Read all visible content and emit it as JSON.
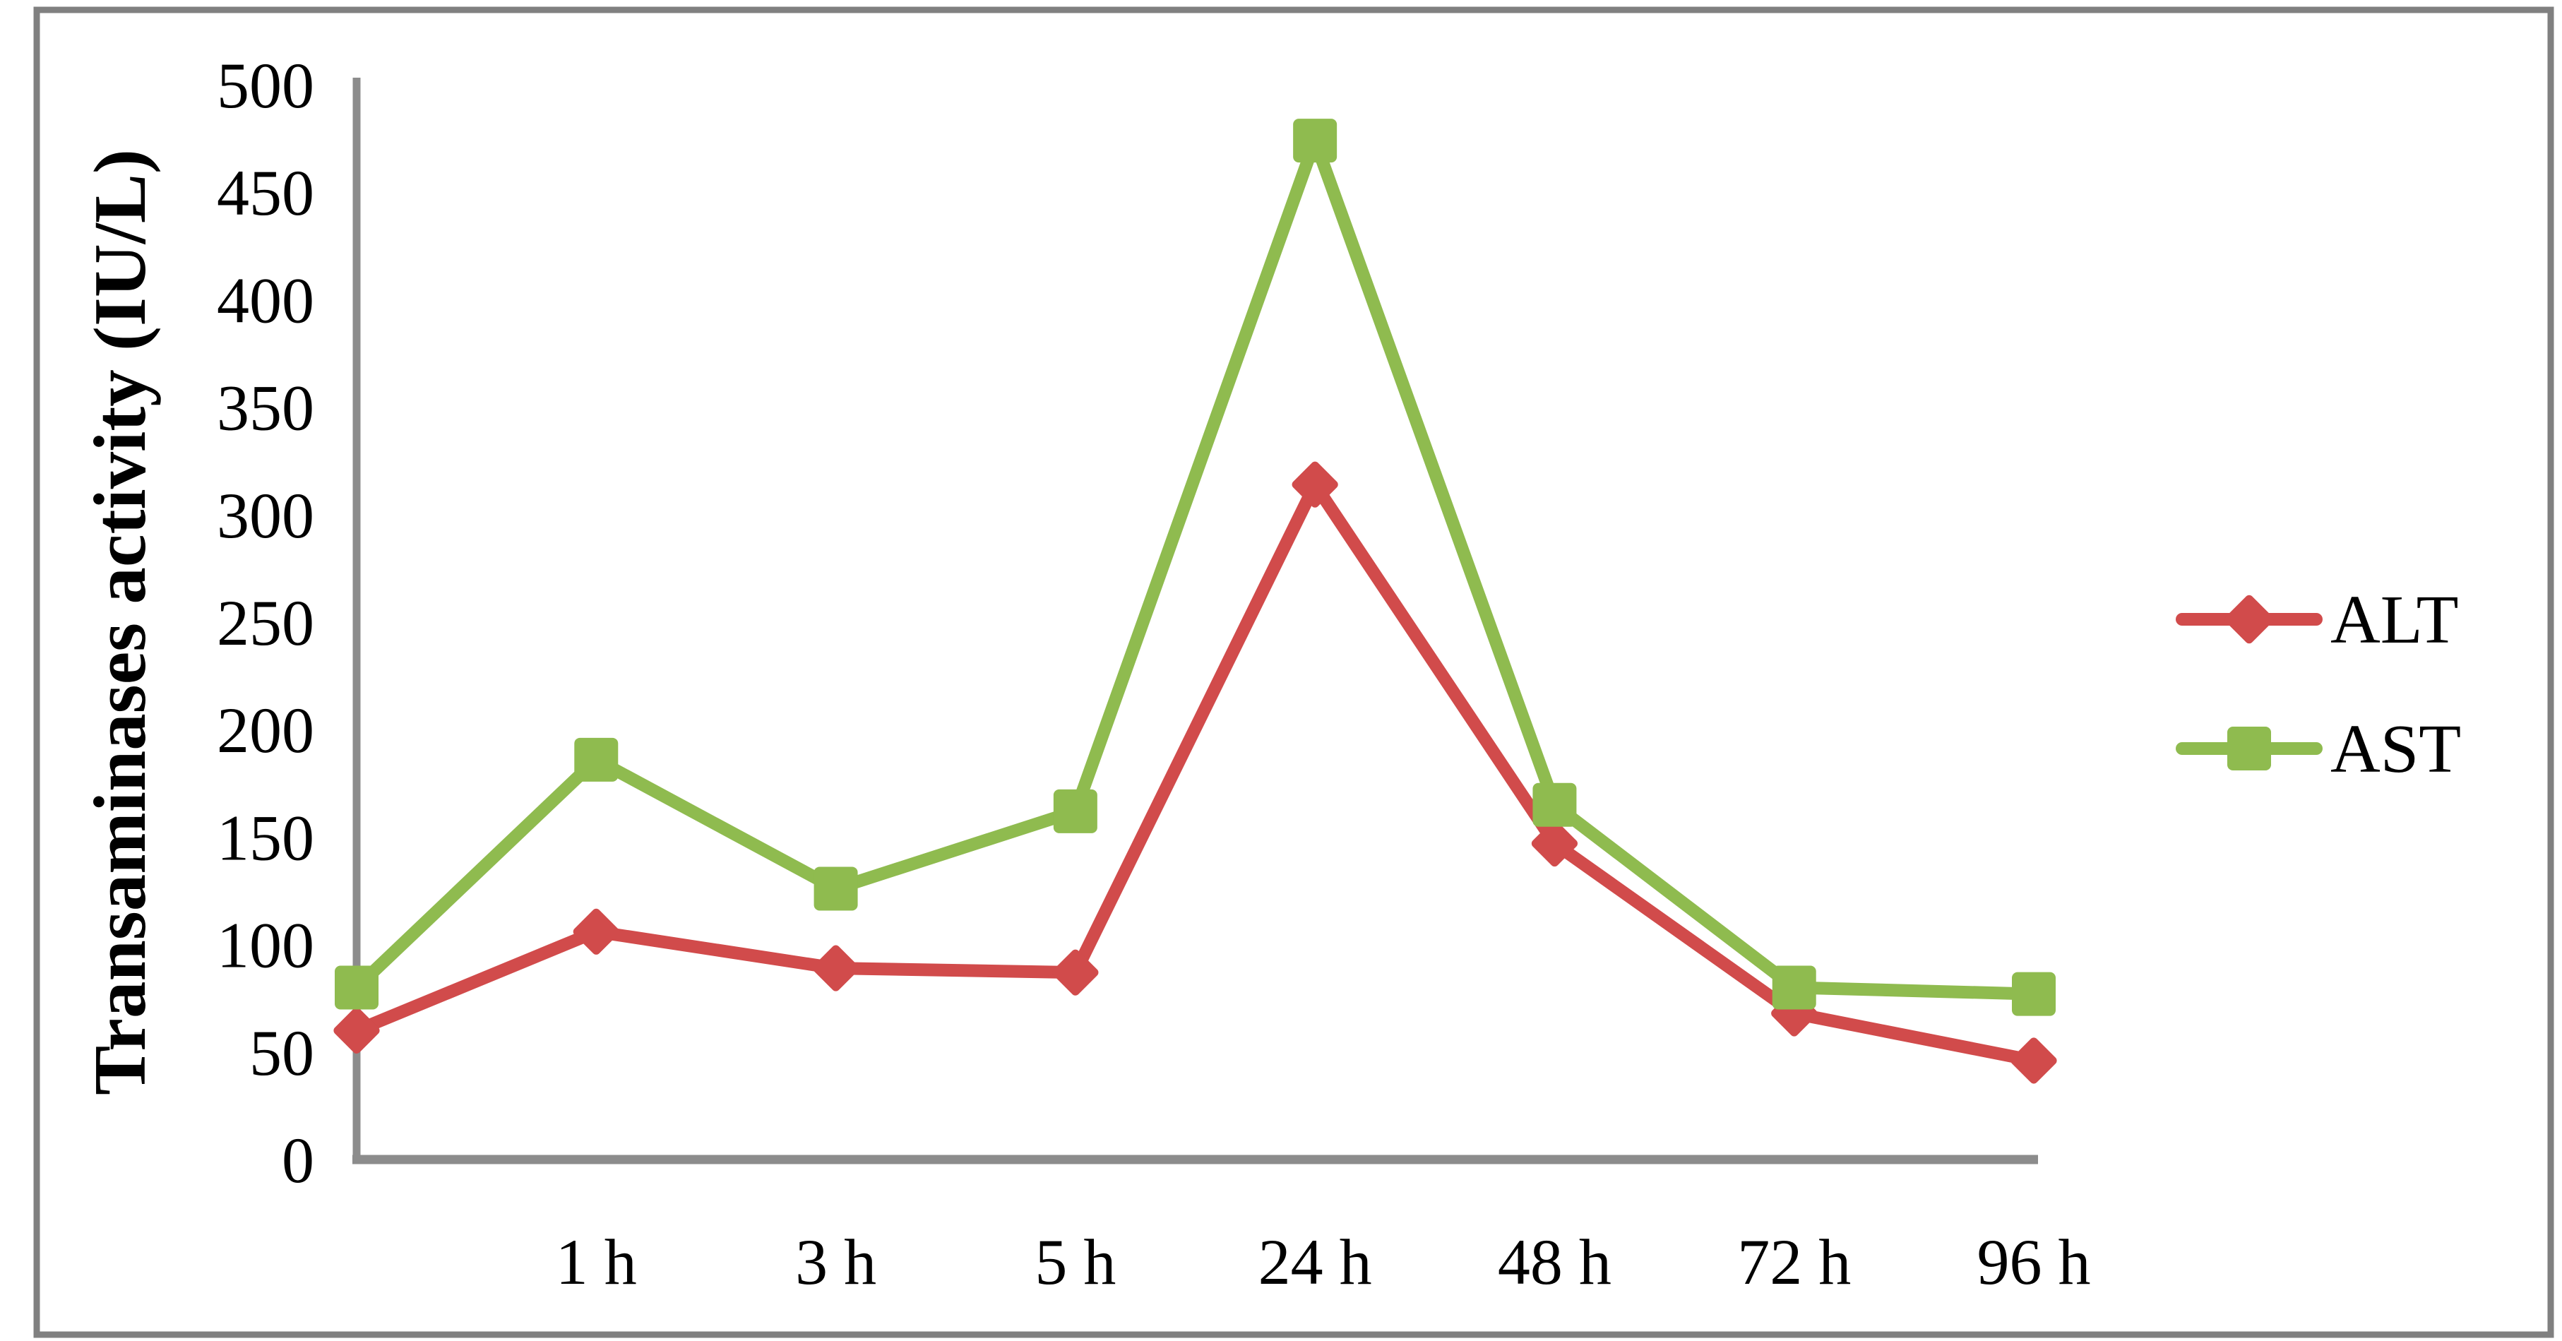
{
  "chart_data": {
    "type": "line",
    "categories": [
      "",
      "1 h",
      "3 h",
      "5 h",
      "24 h",
      "48 h",
      "72 h",
      "96 h"
    ],
    "series": [
      {
        "name": "ALT",
        "color": "#D14B4B",
        "marker": "diamond",
        "values": [
          60,
          106,
          89,
          87,
          314,
          147,
          68,
          46
        ]
      },
      {
        "name": "AST",
        "color": "#8FBB4F",
        "marker": "square",
        "values": [
          80,
          186,
          126,
          162,
          474,
          165,
          80,
          77
        ]
      }
    ],
    "title": "",
    "xlabel": "",
    "ylabel": "Transaminases activity (IU/L)",
    "ylim": [
      0,
      500
    ],
    "ytick_step": 50,
    "yticks": [
      0,
      50,
      100,
      150,
      200,
      250,
      300,
      350,
      400,
      450,
      500
    ],
    "grid": false,
    "legend_position": "right",
    "axis_color": "#8C8C8C",
    "frame_color": "#808080",
    "text_color": "#000000"
  }
}
